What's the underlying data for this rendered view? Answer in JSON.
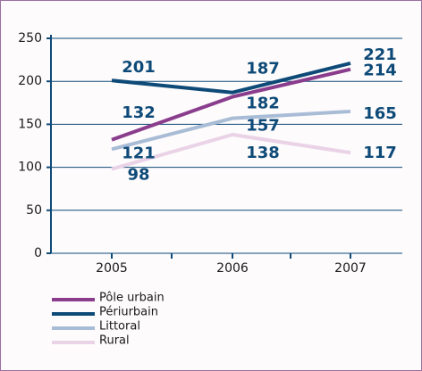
{
  "chart_data": {
    "type": "line",
    "categories": [
      "2005",
      "2006",
      "2007"
    ],
    "series": [
      {
        "name": "Pôle urbain",
        "color": "#8a3d8c",
        "values": [
          132,
          182,
          214
        ]
      },
      {
        "name": "Périurbain",
        "color": "#0e4a78",
        "values": [
          201,
          187,
          221
        ]
      },
      {
        "name": "Littoral",
        "color": "#a9bcd6",
        "values": [
          121,
          157,
          165
        ]
      },
      {
        "name": "Rural",
        "color": "#ead3e6",
        "values": [
          98,
          138,
          117
        ]
      }
    ],
    "ylim": [
      0,
      250
    ],
    "yticks": [
      0,
      50,
      100,
      150,
      200,
      250
    ],
    "grid": true,
    "legend": "bottom"
  }
}
